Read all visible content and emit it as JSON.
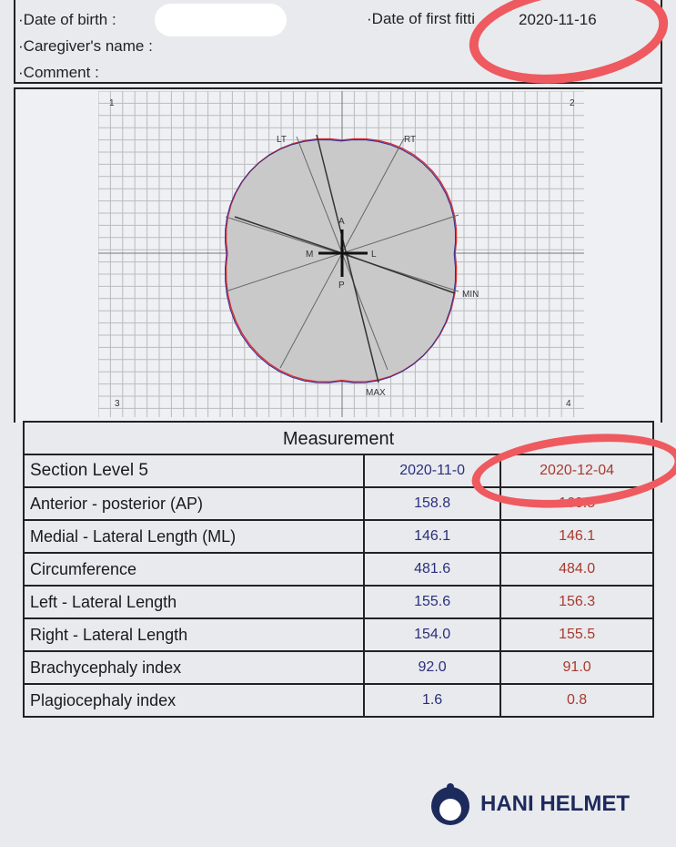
{
  "header": {
    "date_of_birth_label": "·Date of birth :",
    "caregiver_label": "·Caregiver's name :",
    "comment_label": "·Comment :",
    "first_fitting_label": "·Date of first fitti",
    "first_fitting_value": "2020-11-16"
  },
  "plot": {
    "corners": [
      "1",
      "2",
      "3",
      "4"
    ],
    "labels": {
      "lt": "LT",
      "rt": "RT",
      "min": "MIN",
      "max": "MAX",
      "a": "A",
      "p": "P",
      "m": "M",
      "l": "L"
    },
    "colors": {
      "scan1": "#2a2f9a",
      "scan2": "#d8303a",
      "fill": "#c9c9c9"
    }
  },
  "measurement": {
    "title": "Measurement",
    "section": "Section Level 5",
    "dates": [
      "2020-11-0",
      "2020-12-04"
    ],
    "rows": [
      {
        "label": "Anterior - posterior (AP)",
        "v1": "158.8",
        "v2": "160.5"
      },
      {
        "label": "Medial - Lateral Length (ML)",
        "v1": "146.1",
        "v2": "146.1"
      },
      {
        "label": "Circumference",
        "v1": "481.6",
        "v2": "484.0"
      },
      {
        "label": "Left - Lateral Length",
        "v1": "155.6",
        "v2": "156.3"
      },
      {
        "label": "Right - Lateral Length",
        "v1": "154.0",
        "v2": "155.5"
      },
      {
        "label": "Brachycephaly index",
        "v1": "92.0",
        "v2": "91.0"
      },
      {
        "label": "Plagiocephaly index",
        "v1": "1.6",
        "v2": "0.8"
      }
    ]
  },
  "brand": {
    "logo_text": "HANI HELMET"
  }
}
